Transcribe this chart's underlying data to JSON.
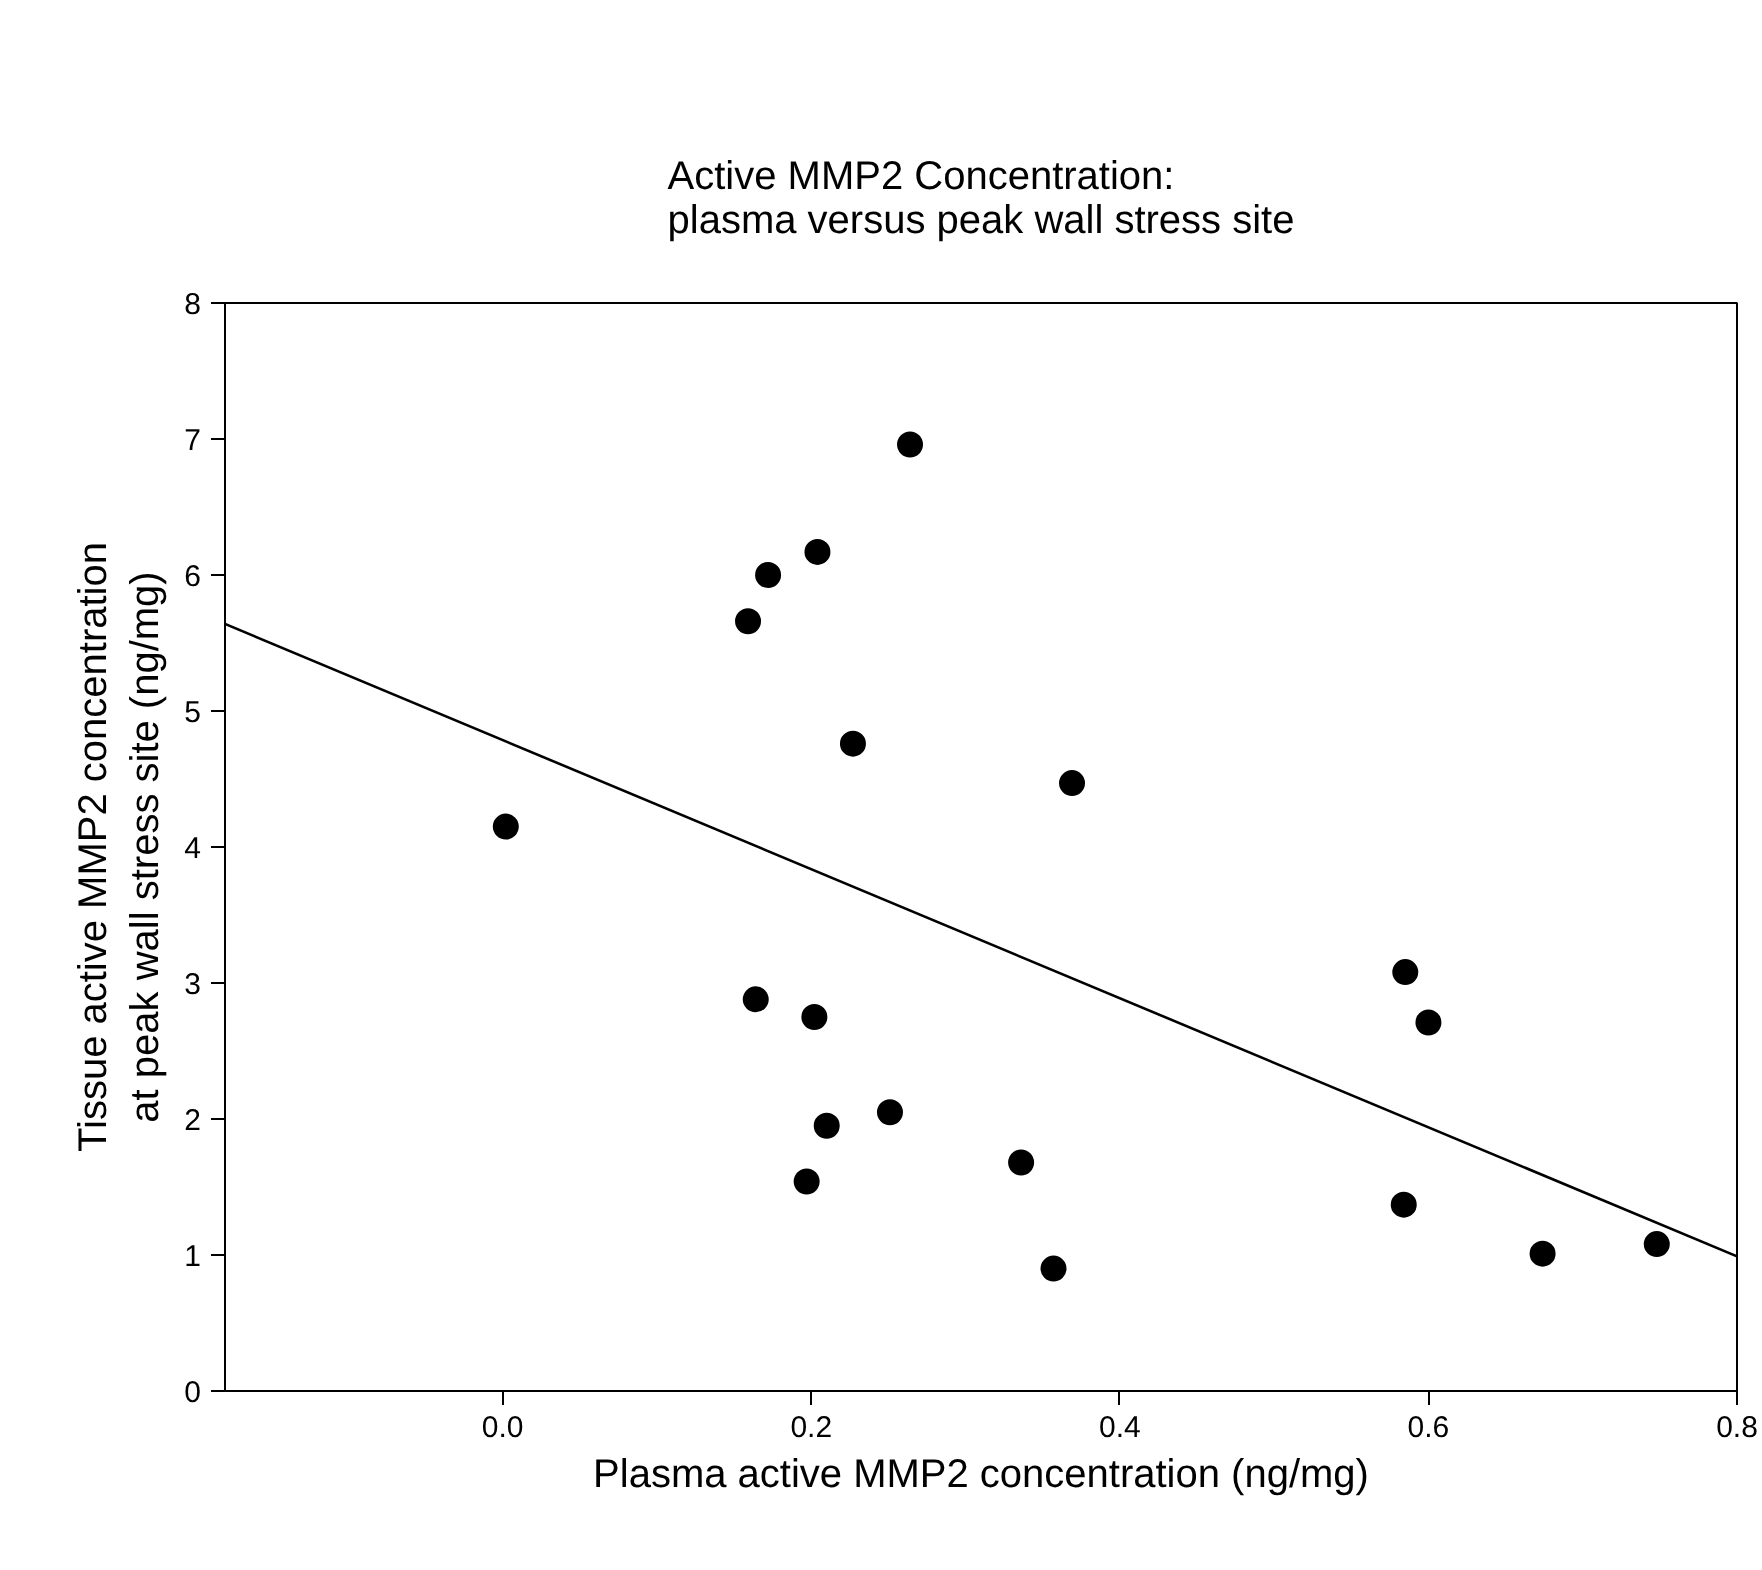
{
  "chart_data": {
    "type": "scatter",
    "title": "Active MMP2 Concentration:\nplasma versus peak wall stress site",
    "xlabel": "Plasma active MMP2 concentration (ng/mg)",
    "ylabel": "Tissue active MMP2 concentration\nat peak wall stress site (ng/mg)",
    "series": [
      {
        "color": "#000000",
        "marker": "circle",
        "x": [
          0.002,
          0.159,
          0.172,
          0.204,
          0.264,
          0.227,
          0.369,
          0.164,
          0.202,
          0.21,
          0.251,
          0.197,
          0.336,
          0.357,
          0.585,
          0.6,
          0.584,
          0.674,
          0.748
        ],
        "values": [
          4.15,
          5.66,
          6.0,
          6.17,
          6.96,
          4.76,
          4.47,
          2.88,
          2.75,
          1.95,
          2.05,
          1.54,
          1.68,
          0.9,
          3.08,
          2.71,
          1.37,
          1.01,
          1.08
        ]
      },
      {
        "type": "line",
        "marker": "none",
        "color": "#000000",
        "x": [
          -0.18,
          0.8
        ],
        "values": [
          5.64,
          0.99
        ]
      }
    ],
    "xlim": [
      -0.18,
      0.8
    ],
    "ylim": [
      0,
      8
    ],
    "xticks": [
      {
        "value": 0,
        "label": "0.0"
      },
      0.2,
      0.4,
      0.6,
      0.8
    ],
    "yticks": [
      0,
      1,
      2,
      3,
      4,
      5,
      6,
      7,
      8
    ],
    "grid": false
  }
}
